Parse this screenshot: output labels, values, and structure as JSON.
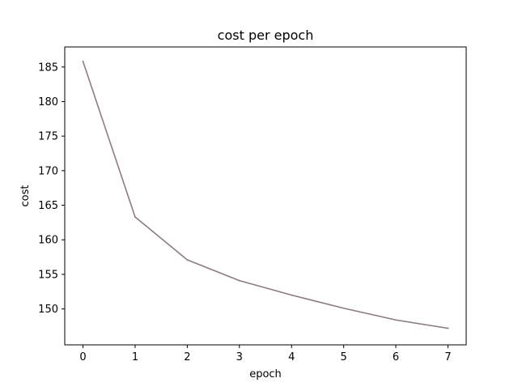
{
  "chart_data": {
    "type": "line",
    "title": "cost per epoch",
    "xlabel": "epoch",
    "ylabel": "cost",
    "xlim": [
      -0.35,
      7.35
    ],
    "ylim": [
      144.8,
      187.9
    ],
    "x_ticks": [
      0,
      1,
      2,
      3,
      4,
      5,
      6,
      7
    ],
    "y_ticks": [
      150,
      155,
      160,
      165,
      170,
      175,
      180,
      185
    ],
    "grid": false,
    "legend": "none",
    "series": [
      {
        "color": "#8c7b7f",
        "x": [
          0,
          1,
          2,
          3,
          4,
          5,
          6,
          7
        ],
        "values": [
          185.8,
          163.3,
          157.1,
          154.1,
          152.0,
          150.1,
          148.4,
          147.2
        ]
      }
    ]
  }
}
